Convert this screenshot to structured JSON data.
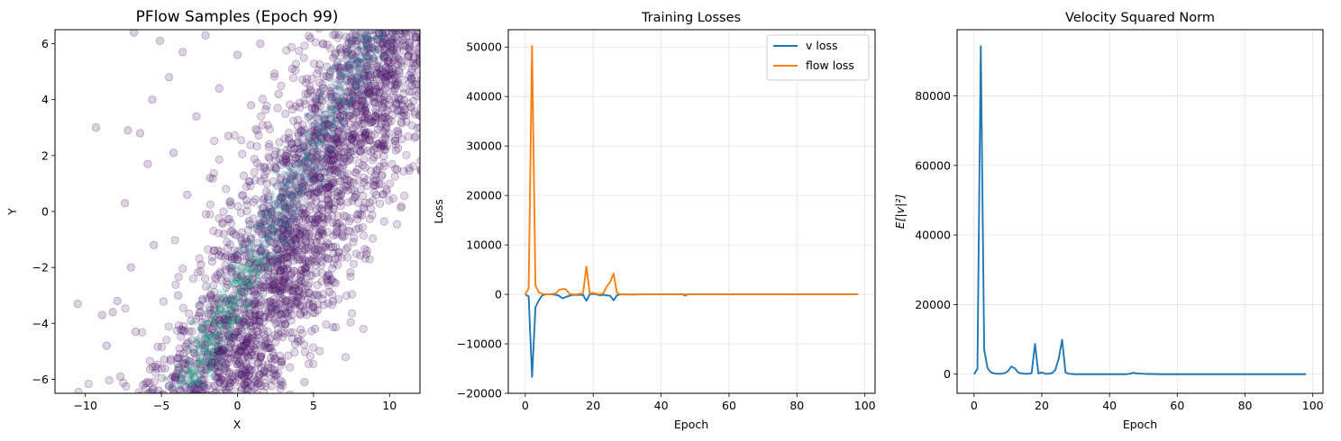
{
  "chart_data": [
    {
      "type": "scatter",
      "title": "PFlow Samples (Epoch 99)",
      "xlabel": "X",
      "ylabel": "Y",
      "xlim": [
        -12,
        12
      ],
      "ylim": [
        -6.5,
        6.5
      ],
      "xticks": [
        -10,
        -5,
        0,
        5,
        10
      ],
      "xtick_labels": [
        "−10",
        "−5",
        "0",
        "5",
        "10"
      ],
      "yticks": [
        -6,
        -4,
        -2,
        0,
        2,
        4,
        6
      ],
      "ytick_labels": [
        "−6",
        "−4",
        "−2",
        "0",
        "2",
        "4",
        "6"
      ],
      "grid": false,
      "point_color": "#4b1a6b",
      "density_color": "#22a884",
      "description_points": [
        [
          -10.5,
          -3.3
        ],
        [
          -9.3,
          3.0
        ],
        [
          -8.9,
          -3.7
        ],
        [
          -8.6,
          -4.8
        ],
        [
          -8.2,
          -3.6
        ],
        [
          -7.9,
          -3.2
        ],
        [
          -7.7,
          -5.9
        ],
        [
          -7.4,
          0.3
        ],
        [
          -7.2,
          2.9
        ],
        [
          -7.0,
          -2.0
        ],
        [
          -6.8,
          6.4
        ],
        [
          -6.7,
          -4.3
        ],
        [
          -6.4,
          2.8
        ],
        [
          -6.2,
          -6.2
        ],
        [
          -5.9,
          1.7
        ],
        [
          -5.6,
          4.0
        ],
        [
          -5.5,
          -1.2
        ],
        [
          -5.1,
          6.1
        ],
        [
          -4.8,
          -5.3
        ],
        [
          -4.5,
          4.8
        ],
        [
          -4.2,
          2.1
        ],
        [
          -3.9,
          -3.0
        ],
        [
          -3.6,
          5.7
        ],
        [
          -3.3,
          0.6
        ],
        [
          -3.0,
          -4.6
        ],
        [
          -2.7,
          3.4
        ],
        [
          -2.4,
          -1.9
        ],
        [
          -2.1,
          6.3
        ],
        [
          -1.8,
          1.2
        ],
        [
          -1.5,
          -5.9
        ],
        [
          -1.2,
          4.4
        ],
        [
          -0.9,
          -0.8
        ],
        [
          -0.6,
          2.7
        ],
        [
          -0.3,
          -3.9
        ],
        [
          0.0,
          5.6
        ],
        [
          0.3,
          -6.3
        ],
        [
          0.6,
          0.4
        ],
        [
          0.9,
          3.8
        ],
        [
          1.2,
          -2.6
        ],
        [
          1.5,
          6.0
        ],
        [
          1.8,
          -4.8
        ],
        [
          2.1,
          1.9
        ],
        [
          2.4,
          -5.8
        ],
        [
          2.7,
          4.2
        ],
        [
          3.0,
          -1.0
        ],
        [
          3.3,
          -3.4
        ],
        [
          3.6,
          5.1
        ],
        [
          3.9,
          -0.6
        ],
        [
          4.2,
          2.9
        ],
        [
          4.5,
          -2.2
        ],
        [
          4.8,
          6.2
        ],
        [
          5.1,
          -4.2
        ],
        [
          5.4,
          0.8
        ],
        [
          5.7,
          3.3
        ],
        [
          6.0,
          -1.7
        ],
        [
          6.3,
          5.5
        ],
        [
          6.6,
          1.4
        ],
        [
          6.9,
          -0.9
        ],
        [
          7.2,
          4.7
        ],
        [
          7.5,
          2.3
        ],
        [
          7.8,
          0.6
        ],
        [
          8.1,
          5.3
        ],
        [
          8.4,
          3.6
        ],
        [
          8.8,
          6.1
        ],
        [
          9.1,
          4.9
        ],
        [
          9.6,
          6.3
        ],
        [
          10.2,
          5.1
        ],
        [
          10.5,
          1.5
        ],
        [
          11.0,
          6.4
        ],
        [
          -5.2,
          -6.4
        ],
        [
          -4.0,
          -5.8
        ],
        [
          4.4,
          -6.1
        ]
      ]
    },
    {
      "type": "line",
      "title": "Training Losses",
      "xlabel": "Epoch",
      "ylabel": "Loss",
      "xlim": [
        -5,
        103
      ],
      "ylim": [
        -20000,
        53500
      ],
      "xticks": [
        0,
        20,
        40,
        60,
        80,
        100
      ],
      "xtick_labels": [
        "0",
        "20",
        "40",
        "60",
        "80",
        "100"
      ],
      "yticks": [
        -20000,
        -10000,
        0,
        10000,
        20000,
        30000,
        40000,
        50000
      ],
      "ytick_labels": [
        "−20000",
        "−10000",
        "0",
        "10000",
        "20000",
        "30000",
        "40000",
        "50000"
      ],
      "grid": true,
      "legend_position": "top-right",
      "series": [
        {
          "name": "v loss",
          "color": "#1f77b4",
          "x": [
            0,
            1,
            2,
            3,
            4,
            5,
            6,
            7,
            8,
            9,
            10,
            11,
            12,
            13,
            14,
            15,
            16,
            17,
            18,
            19,
            20,
            21,
            22,
            23,
            24,
            25,
            26,
            27,
            28,
            30,
            32,
            35,
            40,
            45,
            46,
            47,
            48,
            50,
            55,
            60,
            70,
            80,
            90,
            98
          ],
          "y": [
            0,
            -400,
            -16700,
            -2600,
            -1200,
            -200,
            0,
            0,
            0,
            -100,
            -300,
            -800,
            -500,
            -300,
            -100,
            -100,
            -100,
            -100,
            -1300,
            0,
            100,
            0,
            -200,
            -100,
            -200,
            -300,
            -1200,
            -200,
            0,
            -50,
            -50,
            0,
            0,
            0,
            50,
            -200,
            0,
            0,
            0,
            0,
            0,
            0,
            0,
            0
          ]
        },
        {
          "name": "flow loss",
          "color": "#ff7f0e",
          "x": [
            0,
            1,
            2,
            3,
            4,
            5,
            6,
            7,
            8,
            9,
            10,
            11,
            12,
            13,
            14,
            15,
            16,
            17,
            18,
            19,
            20,
            21,
            22,
            23,
            24,
            25,
            26,
            27,
            28,
            30,
            32,
            35,
            40,
            45,
            50,
            55,
            60,
            70,
            80,
            90,
            98
          ],
          "y": [
            0,
            1200,
            50200,
            1800,
            400,
            100,
            0,
            0,
            100,
            200,
            900,
            1100,
            1000,
            100,
            0,
            0,
            100,
            200,
            5600,
            200,
            300,
            100,
            0,
            200,
            1600,
            2500,
            4200,
            300,
            0,
            0,
            0,
            0,
            0,
            0,
            0,
            0,
            0,
            0,
            0,
            0,
            0
          ]
        }
      ]
    },
    {
      "type": "line",
      "title": "Velocity Squared Norm",
      "xlabel": "Epoch",
      "ylabel": "E[|v|²]",
      "xlim": [
        -5,
        103
      ],
      "ylim": [
        -5500,
        99000
      ],
      "xticks": [
        0,
        20,
        40,
        60,
        80,
        100
      ],
      "xtick_labels": [
        "0",
        "20",
        "40",
        "60",
        "80",
        "100"
      ],
      "yticks": [
        0,
        20000,
        40000,
        60000,
        80000
      ],
      "ytick_labels": [
        "0",
        "20000",
        "40000",
        "60000",
        "80000"
      ],
      "grid": true,
      "series": [
        {
          "name": "E[|v|²]",
          "color": "#1f77b4",
          "x": [
            0,
            1,
            2,
            3,
            4,
            5,
            6,
            7,
            8,
            9,
            10,
            11,
            12,
            13,
            14,
            15,
            16,
            17,
            18,
            19,
            20,
            21,
            22,
            23,
            24,
            25,
            26,
            27,
            28,
            30,
            32,
            35,
            40,
            45,
            46,
            47,
            48,
            50,
            55,
            60,
            70,
            80,
            90,
            98
          ],
          "y": [
            0,
            1500,
            94300,
            7000,
            1700,
            500,
            200,
            100,
            100,
            300,
            800,
            2200,
            1700,
            500,
            200,
            100,
            100,
            300,
            8700,
            200,
            500,
            100,
            100,
            300,
            1200,
            4500,
            9900,
            500,
            100,
            0,
            0,
            0,
            0,
            0,
            100,
            400,
            200,
            100,
            0,
            0,
            0,
            0,
            0,
            0
          ]
        }
      ]
    }
  ]
}
